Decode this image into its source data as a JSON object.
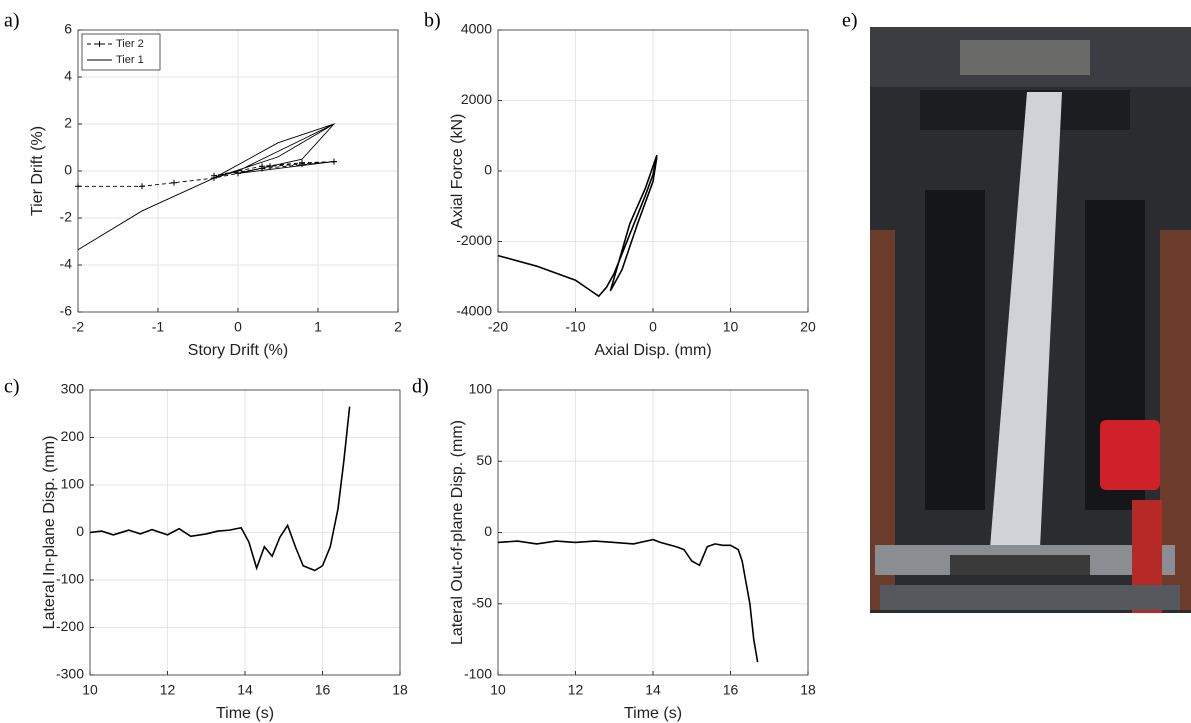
{
  "chart_data": [
    {
      "type": "line",
      "panel_label": "a)",
      "x_label": "Story Drift (%)",
      "y_label": "Tier Drift (%)",
      "xlim": [
        -2,
        2
      ],
      "xticks": [
        -2,
        -1,
        0,
        1,
        2
      ],
      "ylim": [
        -6,
        6
      ],
      "yticks": [
        -6,
        -4,
        -2,
        0,
        2,
        4,
        6
      ],
      "grid": true,
      "legend": "upper left",
      "series": [
        {
          "name": "Tier 2",
          "color": "#000000",
          "linestyle": "dashed",
          "marker": "+",
          "x": [
            -2,
            -1.2,
            -0.8,
            -0.3,
            0,
            0.4,
            0.8,
            1.2,
            0.8,
            0.3,
            -0.3,
            0.3,
            1.2
          ],
          "values": [
            -0.65,
            -0.65,
            -0.5,
            -0.3,
            -0.1,
            0.2,
            0.3,
            0.4,
            0.35,
            0.2,
            -0.2,
            0.1,
            0.4
          ]
        },
        {
          "name": "Tier 1",
          "color": "#000000",
          "linestyle": "solid",
          "x": [
            -2,
            -1.2,
            -0.3,
            0.5,
            1.2,
            0.6,
            0,
            -0.3,
            0.5,
            1.2,
            0.8,
            0,
            1.2
          ],
          "values": [
            -3.35,
            -1.7,
            -0.3,
            0.6,
            2.0,
            1.0,
            0,
            -0.3,
            1.2,
            2.0,
            0.5,
            -0.1,
            0.4
          ]
        }
      ]
    },
    {
      "type": "line",
      "panel_label": "b)",
      "x_label": "Axial Disp. (mm)",
      "y_label": "Axial Force (kN)",
      "xlim": [
        -20,
        20
      ],
      "xticks": [
        -20,
        -10,
        0,
        10,
        20
      ],
      "ylim": [
        -4000,
        4000
      ],
      "yticks": [
        -4000,
        -2000,
        0,
        2000,
        4000
      ],
      "grid": true,
      "series": [
        {
          "color": "#000000",
          "linestyle": "solid",
          "x": [
            -20,
            -15,
            -10,
            -8,
            -7,
            -6,
            -5,
            -3,
            -1,
            0,
            0.5,
            -1,
            -3,
            -5.5,
            -4,
            -2,
            0,
            0.5
          ],
          "values": [
            -2400,
            -2700,
            -3100,
            -3400,
            -3550,
            -3300,
            -2900,
            -1800,
            -700,
            -100,
            450,
            -500,
            -1500,
            -3400,
            -2800,
            -1500,
            -300,
            400
          ]
        }
      ]
    },
    {
      "type": "line",
      "panel_label": "c)",
      "x_label": "Time (s)",
      "y_label": "Lateral In-plane Disp.  (mm)",
      "xlim": [
        10,
        18
      ],
      "xticks": [
        10,
        12,
        14,
        16,
        18
      ],
      "ylim": [
        -300,
        300
      ],
      "yticks": [
        -300,
        -200,
        -100,
        0,
        100,
        200,
        300
      ],
      "grid": true,
      "series": [
        {
          "color": "#000000",
          "linestyle": "solid",
          "x": [
            10,
            10.3,
            10.6,
            11,
            11.3,
            11.6,
            12,
            12.3,
            12.6,
            13,
            13.3,
            13.6,
            13.9,
            14.1,
            14.3,
            14.5,
            14.7,
            14.9,
            15.1,
            15.3,
            15.5,
            15.8,
            16,
            16.2,
            16.4,
            16.55,
            16.7
          ],
          "values": [
            0,
            3,
            -5,
            5,
            -3,
            6,
            -5,
            8,
            -8,
            -3,
            3,
            5,
            10,
            -20,
            -75,
            -30,
            -50,
            -10,
            15,
            -30,
            -70,
            -80,
            -70,
            -30,
            50,
            150,
            265
          ]
        }
      ]
    },
    {
      "type": "line",
      "panel_label": "d)",
      "x_label": "Time (s)",
      "y_label": "Lateral Out-of-plane Disp. (mm)",
      "xlim": [
        10,
        18
      ],
      "xticks": [
        10,
        12,
        14,
        16,
        18
      ],
      "ylim": [
        -100,
        100
      ],
      "yticks": [
        -100,
        -50,
        0,
        50,
        100
      ],
      "grid": true,
      "series": [
        {
          "color": "#000000",
          "linestyle": "solid",
          "x": [
            10,
            10.5,
            11,
            11.5,
            12,
            12.5,
            13,
            13.5,
            14,
            14.2,
            14.6,
            14.8,
            15,
            15.2,
            15.4,
            15.6,
            15.8,
            16,
            16.2,
            16.3,
            16.4,
            16.5,
            16.6,
            16.7
          ],
          "values": [
            -7,
            -6,
            -8,
            -6,
            -7,
            -6,
            -7,
            -8,
            -5,
            -7,
            -10,
            -12,
            -20,
            -23,
            -10,
            -8,
            -9,
            -9,
            -12,
            -20,
            -35,
            -50,
            -75,
            -91
          ]
        }
      ]
    }
  ],
  "photo": {
    "panel_label": "e)"
  }
}
